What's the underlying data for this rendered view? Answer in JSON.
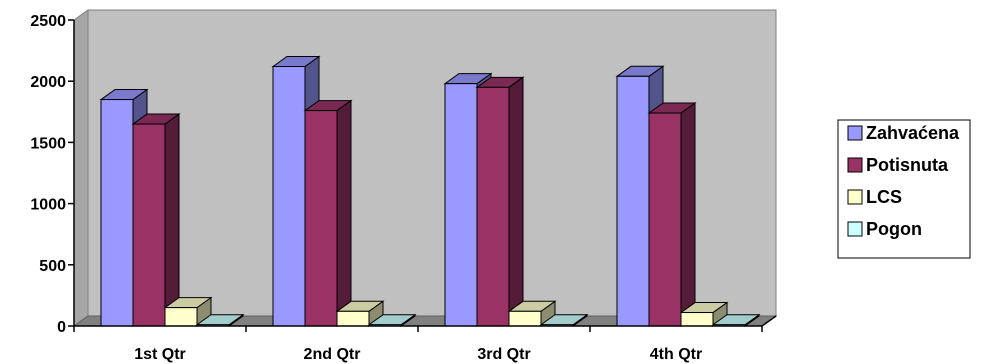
{
  "chart_data": {
    "type": "bar",
    "categories": [
      "1st Qtr",
      "2nd Qtr",
      "3rd Qtr",
      "4th Qtr"
    ],
    "series": [
      {
        "name": "Zahvaćena",
        "values": [
          1850,
          2120,
          1980,
          2040
        ],
        "color": "#9999ff"
      },
      {
        "name": "Potisnuta",
        "values": [
          1650,
          1760,
          1950,
          1740
        ],
        "color": "#993366"
      },
      {
        "name": "LCS",
        "values": [
          150,
          120,
          120,
          110
        ],
        "color": "#ffffcc"
      },
      {
        "name": "Pogon",
        "values": [
          10,
          10,
          10,
          10
        ],
        "color": "#ccffff"
      }
    ],
    "yticks": [
      0,
      500,
      1000,
      1500,
      2000,
      2500
    ],
    "ylim": [
      0,
      2500
    ],
    "grid": false,
    "legend": "right",
    "plot_background": "#c0c0c0",
    "floor_color": "#808080"
  }
}
